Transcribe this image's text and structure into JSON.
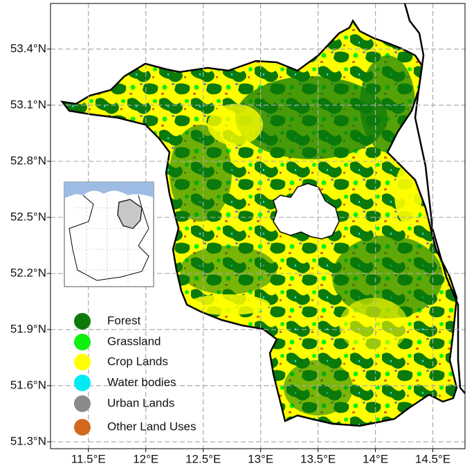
{
  "map": {
    "type": "map",
    "xlim": [
      11.17,
      14.78
    ],
    "ylim": [
      51.263,
      53.644
    ],
    "xticks": [
      {
        "value": 11.5,
        "label": "11.5°E"
      },
      {
        "value": 12,
        "label": "12°E"
      },
      {
        "value": 12.5,
        "label": "12.5°E"
      },
      {
        "value": 13,
        "label": "13°E"
      },
      {
        "value": 13.5,
        "label": "13.5°E"
      },
      {
        "value": 14,
        "label": "14°E"
      },
      {
        "value": 14.5,
        "label": "14.5°E"
      }
    ],
    "yticks": [
      {
        "value": 51.3,
        "label": "51.3°N"
      },
      {
        "value": 51.6,
        "label": "51.6°N"
      },
      {
        "value": 51.9,
        "label": "51.9°N"
      },
      {
        "value": 52.2,
        "label": "52.2°N"
      },
      {
        "value": 52.5,
        "label": "52.5°N"
      },
      {
        "value": 52.8,
        "label": "52.8°N"
      },
      {
        "value": 53.1,
        "label": "53.1°N"
      },
      {
        "value": 53.4,
        "label": "53.4°N"
      }
    ],
    "grid": true,
    "legend": [
      {
        "name": "Forest",
        "color": "#0b7a0b"
      },
      {
        "name": "Grassland",
        "color": "#0ef00e"
      },
      {
        "name": "Crop Lands",
        "color": "#ffff00"
      },
      {
        "name": "Water bodies",
        "color": "#00ecf5"
      },
      {
        "name": "Urban Lands",
        "color": "#8a8a8a"
      },
      {
        "name": "Other Land Uses",
        "color": "#d2691e"
      }
    ]
  }
}
